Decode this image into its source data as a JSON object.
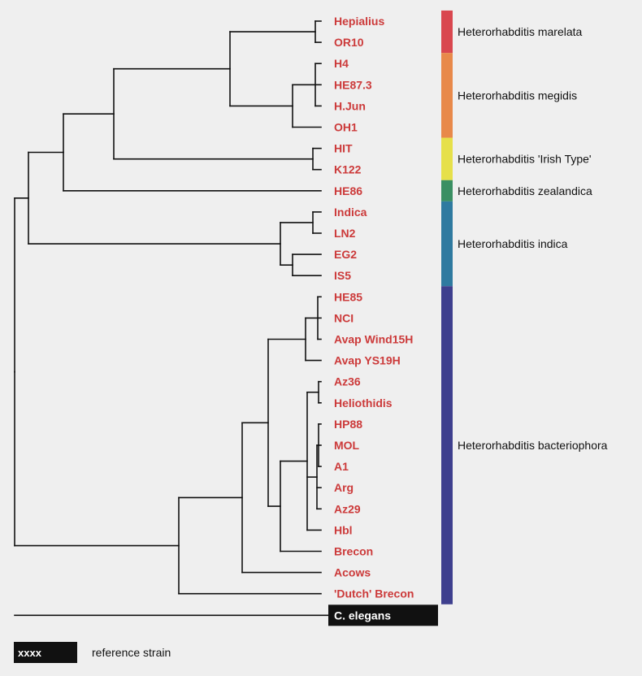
{
  "colors": {
    "taxon_text": "#cc3a3a",
    "reference_bg": "#111111",
    "reference_text": "#ffffff",
    "branch": "#111111"
  },
  "taxa": [
    "Hepialius",
    "OR10",
    "H4",
    "HE87.3",
    "H.Jun",
    "OH1",
    "HIT",
    "K122",
    "HE86",
    "Indica",
    "LN2",
    "EG2",
    "IS5",
    "HE85",
    "NCI",
    "Avap Wind15H",
    "Avap YS19H",
    "Az36",
    "Heliothidis",
    "HP88",
    "MOL",
    "A1",
    "Arg",
    "Az29",
    "Hbl",
    "Brecon",
    "Acows",
    "'Dutch' Brecon"
  ],
  "reference_taxon": "C. elegans",
  "clades": [
    {
      "name": "Heterorhabditis marelata",
      "color": "#d9474f",
      "members": [
        "Hepialius",
        "OR10"
      ]
    },
    {
      "name": "Heterorhabditis megidis",
      "color": "#e8894a",
      "members": [
        "H4",
        "HE87.3",
        "H.Jun",
        "OH1"
      ]
    },
    {
      "name": "Heterorhabditis 'Irish Type'",
      "color": "#e6e04a",
      "members": [
        "HIT",
        "K122"
      ]
    },
    {
      "name": "Heterorhabditis zealandica",
      "color": "#3a8f63",
      "members": [
        "HE86"
      ]
    },
    {
      "name": "Heterorhabditis indica",
      "color": "#2f7aa0",
      "members": [
        "Indica",
        "LN2",
        "EG2",
        "IS5"
      ]
    },
    {
      "name": "Heterorhabditis bacteriophora",
      "color": "#3e3f8e",
      "members": [
        "HE85",
        "NCI",
        "Avap Wind15H",
        "Avap YS19H",
        "Az36",
        "Heliothidis",
        "HP88",
        "MOL",
        "A1",
        "Arg",
        "Az29",
        "Hbl",
        "Brecon",
        "Acows",
        "'Dutch' Brecon"
      ]
    }
  ],
  "legend": {
    "swatch_text": "xxxx",
    "label": "reference strain"
  }
}
